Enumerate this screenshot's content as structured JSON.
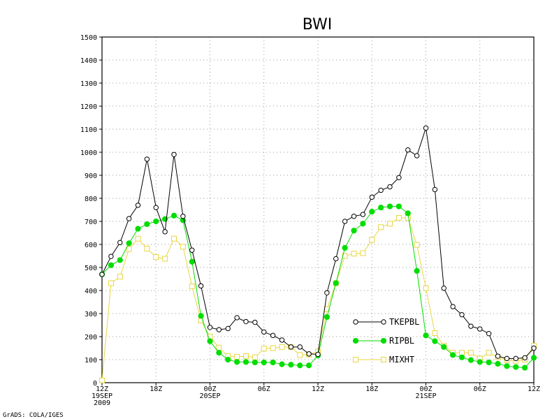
{
  "chart_data": {
    "type": "line",
    "title": "BWI",
    "xlabel": "",
    "ylabel": "",
    "ylim": [
      0,
      1500
    ],
    "yticks": [
      0,
      100,
      200,
      300,
      400,
      500,
      600,
      700,
      800,
      900,
      1000,
      1100,
      1200,
      1300,
      1400,
      1500
    ],
    "xlim": [
      0,
      48
    ],
    "x_step_hours": 1,
    "xticks": [
      {
        "x": 0,
        "lines": [
          "12Z",
          "19SEP",
          "2009"
        ]
      },
      {
        "x": 6,
        "lines": [
          "18Z"
        ]
      },
      {
        "x": 12,
        "lines": [
          "00Z",
          "20SEP"
        ]
      },
      {
        "x": 18,
        "lines": [
          "06Z"
        ]
      },
      {
        "x": 24,
        "lines": [
          "12Z"
        ]
      },
      {
        "x": 30,
        "lines": [
          "18Z"
        ]
      },
      {
        "x": 36,
        "lines": [
          "00Z",
          "21SEP"
        ]
      },
      {
        "x": 42,
        "lines": [
          "06Z"
        ]
      },
      {
        "x": 48,
        "lines": [
          "12Z"
        ]
      }
    ],
    "grid": true,
    "legend_position": "lower-right",
    "series": [
      {
        "name": "TKEPBL",
        "color": "#000000",
        "marker": "open-circle",
        "values": [
          470,
          548,
          608,
          712,
          770,
          970,
          760,
          655,
          990,
          722,
          575,
          420,
          240,
          230,
          235,
          282,
          265,
          262,
          220,
          205,
          185,
          155,
          155,
          125,
          123,
          390,
          538,
          700,
          722,
          730,
          805,
          835,
          850,
          890,
          1010,
          985,
          1105,
          838,
          410,
          330,
          295,
          245,
          233,
          213,
          115,
          105,
          105,
          108,
          150
        ]
      },
      {
        "name": "RIPBL",
        "color": "#00dd00",
        "marker": "filled-circle",
        "values": [
          470,
          510,
          532,
          605,
          668,
          688,
          700,
          710,
          725,
          705,
          525,
          290,
          180,
          130,
          100,
          90,
          90,
          88,
          88,
          88,
          80,
          78,
          75,
          75,
          118,
          285,
          432,
          585,
          660,
          690,
          742,
          760,
          765,
          765,
          735,
          485,
          205,
          180,
          155,
          120,
          110,
          98,
          90,
          88,
          82,
          72,
          68,
          65,
          108
        ]
      },
      {
        "name": "MIXHT",
        "color": "#e8d640",
        "marker": "open-square",
        "values": [
          10,
          432,
          460,
          580,
          625,
          582,
          545,
          538,
          625,
          590,
          418,
          270,
          200,
          152,
          115,
          112,
          115,
          110,
          148,
          150,
          155,
          155,
          120,
          122,
          135,
          320,
          432,
          550,
          560,
          562,
          620,
          675,
          690,
          715,
          715,
          598,
          410,
          215,
          160,
          130,
          130,
          130,
          105,
          130,
          110,
          98,
          95,
          100,
          160
        ]
      }
    ]
  },
  "credit": "GrADS: COLA/IGES"
}
